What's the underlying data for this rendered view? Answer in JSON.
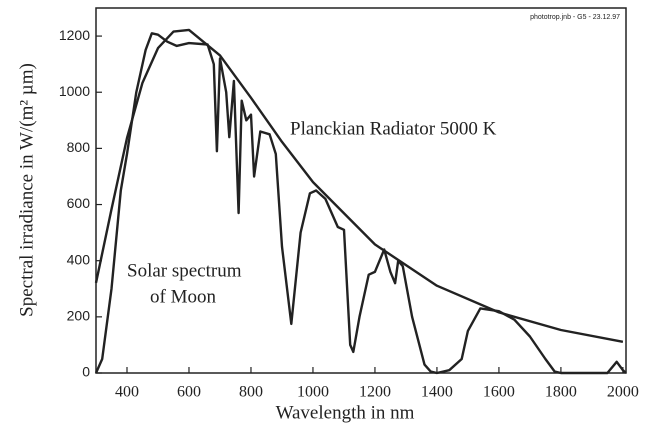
{
  "chart_data": {
    "type": "line",
    "xlabel": "Wavelength in nm",
    "ylabel": "Spectral irradiance in W/(m² µm)",
    "annotations": [
      "Planckian Radiator 5000 K",
      "Solar spectrum",
      "of Moon",
      "phototrop.jnb - G5 - 23.12.97"
    ],
    "xlim": [
      300,
      2010
    ],
    "ylim": [
      0,
      1300
    ],
    "xticks": [
      400,
      600,
      800,
      1000,
      1200,
      1400,
      1600,
      1800,
      2000
    ],
    "yticks": [
      0,
      200,
      400,
      600,
      800,
      1000,
      1200
    ],
    "series": [
      {
        "name": "Planckian Radiator 5000 K",
        "color": "#222222",
        "x": [
          300,
          350,
          400,
          450,
          500,
          550,
          600,
          700,
          800,
          900,
          1000,
          1200,
          1400,
          1600,
          1800,
          2000
        ],
        "values": [
          321,
          583,
          837,
          1034,
          1157,
          1216,
          1222,
          1131,
          980,
          823,
          680,
          458,
          311,
          216,
          153,
          111
        ]
      },
      {
        "name": "Solar spectrum of Moon",
        "color": "#222222",
        "x": [
          300,
          320,
          350,
          380,
          400,
          430,
          460,
          480,
          500,
          530,
          560,
          600,
          660,
          680,
          690,
          700,
          720,
          730,
          745,
          760,
          770,
          785,
          800,
          810,
          830,
          860,
          880,
          900,
          930,
          960,
          990,
          1010,
          1040,
          1080,
          1100,
          1120,
          1130,
          1150,
          1180,
          1200,
          1230,
          1250,
          1265,
          1275,
          1290,
          1320,
          1360,
          1380,
          1400,
          1440,
          1480,
          1500,
          1540,
          1600,
          1650,
          1700,
          1750,
          1780,
          1800,
          1950,
          1980,
          2000,
          2010
        ],
        "values": [
          0,
          50,
          300,
          650,
          780,
          1000,
          1150,
          1210,
          1205,
          1180,
          1165,
          1175,
          1170,
          1100,
          790,
          1120,
          1000,
          840,
          1040,
          570,
          970,
          900,
          920,
          700,
          860,
          850,
          780,
          450,
          175,
          500,
          640,
          650,
          620,
          520,
          510,
          100,
          75,
          200,
          350,
          360,
          440,
          360,
          320,
          400,
          380,
          200,
          30,
          5,
          0,
          10,
          50,
          150,
          230,
          220,
          190,
          130,
          50,
          5,
          0,
          0,
          40,
          10,
          0
        ]
      }
    ]
  }
}
